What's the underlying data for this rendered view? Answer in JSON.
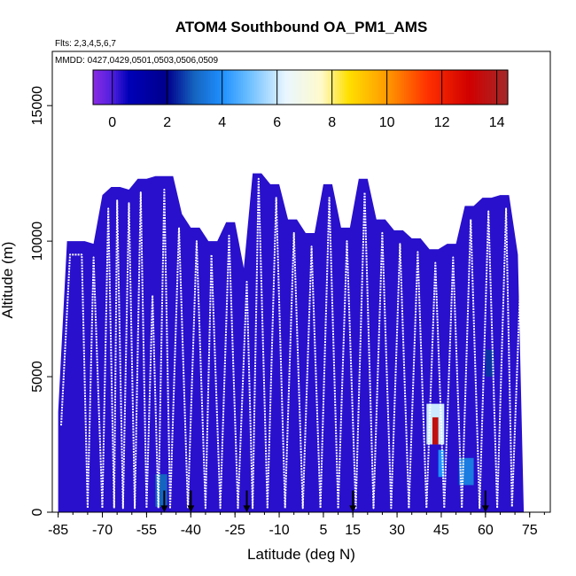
{
  "chart_data": {
    "type": "heatmap",
    "title": "ATOM4 Southbound OA_PM1_AMS",
    "subtitle_flights": "Flts: 2,3,4,5,6,7",
    "subtitle_dates": "MMDD: 0427,0429,0501,0503,0506,0509",
    "xlabel": "Latitude (deg N)",
    "ylabel": "Altitude (m)",
    "xlim": [
      -87,
      82
    ],
    "ylim": [
      0,
      17000
    ],
    "x_ticks": [
      -85,
      -70,
      -55,
      -40,
      -25,
      -10,
      5,
      15,
      30,
      45,
      60,
      75
    ],
    "y_ticks": [
      0,
      5000,
      10000,
      15000
    ],
    "colorbar": {
      "min": -0.7,
      "max": 14.4,
      "ticks": [
        0,
        2,
        4,
        6,
        8,
        10,
        12,
        14
      ],
      "colors": [
        "#8a2be2",
        "#4f1fe0",
        "#0000b8",
        "#00008b",
        "#1565c0",
        "#1e90ff",
        "#6ec0ff",
        "#e8f6ff",
        "#fffacd",
        "#ffe000",
        "#ff9a00",
        "#ff3000",
        "#d00000",
        "#a52a2a"
      ],
      "stops": [
        -0.7,
        0,
        0.6,
        2,
        3,
        4,
        5,
        6.3,
        7.6,
        8.6,
        10,
        11.5,
        13,
        14.4
      ]
    },
    "background_value": 0.3,
    "hotspots": [
      {
        "lat": [
          40,
          46
        ],
        "alt": [
          2500,
          4000
        ],
        "value": 6
      },
      {
        "lat": [
          42,
          44
        ],
        "alt": [
          2500,
          3500
        ],
        "value": 13.5
      },
      {
        "lat": [
          44,
          46
        ],
        "alt": [
          1300,
          2300
        ],
        "value": 4
      },
      {
        "lat": [
          51,
          56
        ],
        "alt": [
          1000,
          2000
        ],
        "value": 3.5
      },
      {
        "lat": [
          -52,
          -48
        ],
        "alt": [
          200,
          1400
        ],
        "value": 3
      },
      {
        "lat": [
          60,
          63
        ],
        "alt": [
          5000,
          6000
        ],
        "value": 2.5
      }
    ],
    "flight_profiles": [
      [
        [
          -84,
          3200
        ],
        [
          -81,
          9500
        ],
        [
          -77,
          9500
        ],
        [
          -75,
          150
        ],
        [
          -73,
          9400
        ],
        [
          -70,
          150
        ],
        [
          -68,
          11200
        ],
        [
          -66,
          150
        ]
      ],
      [
        [
          -66,
          150
        ],
        [
          -65,
          11500
        ],
        [
          -63,
          150
        ],
        [
          -61,
          11400
        ],
        [
          -59,
          150
        ],
        [
          -57,
          11800
        ],
        [
          -55,
          150
        ],
        [
          -53,
          8000
        ],
        [
          -51,
          150
        ],
        [
          -49,
          11900
        ],
        [
          -47,
          150
        ]
      ],
      [
        [
          -47,
          150
        ],
        [
          -44,
          10500
        ],
        [
          -41,
          150
        ],
        [
          -38,
          10000
        ],
        [
          -35,
          150
        ],
        [
          -33,
          9500
        ],
        [
          -30,
          150
        ],
        [
          -27,
          10200
        ],
        [
          -24,
          150
        ],
        [
          -21,
          8500
        ],
        [
          -19,
          150
        ],
        [
          -17,
          12300
        ],
        [
          -14,
          150
        ]
      ],
      [
        [
          -14,
          150
        ],
        [
          -11,
          11600
        ],
        [
          -8,
          150
        ],
        [
          -5,
          10300
        ],
        [
          -2,
          150
        ],
        [
          1,
          9800
        ],
        [
          4,
          150
        ],
        [
          7,
          11600
        ],
        [
          10,
          150
        ]
      ],
      [
        [
          10,
          150
        ],
        [
          13,
          10000
        ],
        [
          16,
          150
        ],
        [
          19,
          11800
        ],
        [
          22,
          150
        ],
        [
          25,
          10300
        ],
        [
          28,
          150
        ],
        [
          31,
          9900
        ],
        [
          34,
          150
        ]
      ],
      [
        [
          34,
          150
        ],
        [
          37,
          9600
        ],
        [
          40,
          150
        ],
        [
          43,
          9200
        ],
        [
          46,
          150
        ],
        [
          49,
          9400
        ],
        [
          52,
          150
        ],
        [
          55,
          10800
        ],
        [
          58,
          150
        ],
        [
          61,
          11100
        ],
        [
          64,
          150
        ],
        [
          67,
          11200
        ],
        [
          69,
          200
        ],
        [
          71,
          6000
        ],
        [
          72,
          9000
        ]
      ]
    ],
    "arrows_lat": [
      -49,
      -40,
      -21,
      15,
      60
    ]
  }
}
